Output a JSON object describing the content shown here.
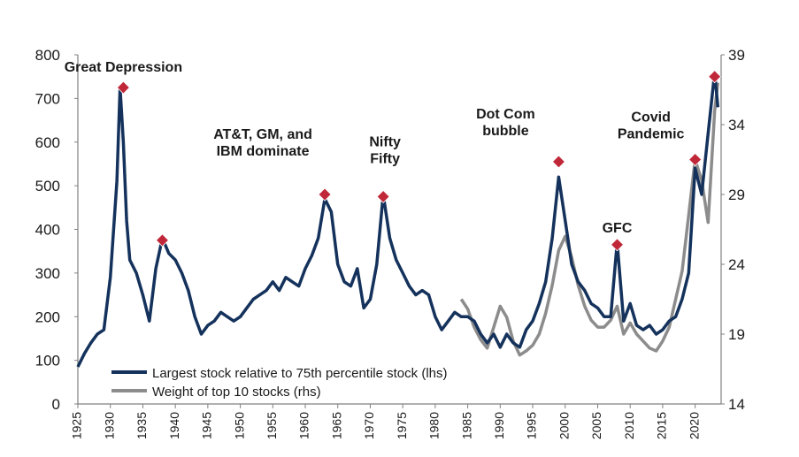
{
  "chart_data": {
    "type": "line",
    "title": "",
    "xlabel": "",
    "ylabel": "",
    "y2label": "",
    "xlim": [
      1925,
      2024
    ],
    "ylim": [
      0,
      800
    ],
    "y2lim": [
      14,
      39
    ],
    "x_ticks": [
      1925,
      1930,
      1935,
      1940,
      1945,
      1950,
      1955,
      1960,
      1965,
      1970,
      1975,
      1980,
      1985,
      1990,
      1995,
      2000,
      2005,
      2010,
      2015,
      2020
    ],
    "y_ticks": [
      0,
      100,
      200,
      300,
      400,
      500,
      600,
      700,
      800
    ],
    "y2_ticks": [
      14,
      19,
      24,
      29,
      34,
      39
    ],
    "grid": false,
    "legend_position": "bottom-left",
    "colors": {
      "lhs": "#14325c",
      "rhs": "#8c8c8c",
      "marker": "#c0283a"
    },
    "series": [
      {
        "name": "Largest stock relative to 75th percentile stock (lhs)",
        "axis": "left",
        "x": [
          1925,
          1926,
          1927,
          1928,
          1929,
          1930,
          1931,
          1931.5,
          1932,
          1932.5,
          1933,
          1934,
          1935,
          1936,
          1937,
          1938,
          1939,
          1940,
          1941,
          1942,
          1943,
          1944,
          1945,
          1946,
          1947,
          1948,
          1949,
          1950,
          1951,
          1952,
          1953,
          1954,
          1955,
          1956,
          1957,
          1958,
          1959,
          1960,
          1961,
          1962,
          1963,
          1964,
          1965,
          1966,
          1967,
          1968,
          1969,
          1970,
          1971,
          1972,
          1973,
          1974,
          1975,
          1976,
          1977,
          1978,
          1979,
          1980,
          1981,
          1982,
          1983,
          1984,
          1985,
          1986,
          1987,
          1988,
          1989,
          1990,
          1991,
          1992,
          1993,
          1994,
          1995,
          1996,
          1997,
          1998,
          1999,
          2000,
          2001,
          2002,
          2003,
          2004,
          2005,
          2006,
          2007,
          2008,
          2009,
          2010,
          2011,
          2012,
          2013,
          2014,
          2015,
          2016,
          2017,
          2018,
          2019,
          2020,
          2021,
          2022,
          2023,
          2023.5
        ],
        "values": [
          85,
          115,
          140,
          160,
          170,
          290,
          510,
          725,
          600,
          420,
          330,
          300,
          250,
          190,
          310,
          380,
          345,
          330,
          300,
          260,
          200,
          160,
          180,
          190,
          210,
          200,
          190,
          200,
          220,
          240,
          250,
          260,
          280,
          260,
          290,
          280,
          270,
          310,
          340,
          380,
          470,
          440,
          320,
          280,
          270,
          310,
          220,
          240,
          320,
          480,
          380,
          330,
          300,
          270,
          250,
          260,
          250,
          200,
          170,
          190,
          210,
          200,
          200,
          190,
          160,
          140,
          160,
          130,
          160,
          140,
          130,
          170,
          190,
          230,
          280,
          380,
          520,
          420,
          320,
          280,
          260,
          230,
          220,
          200,
          200,
          370,
          190,
          230,
          180,
          170,
          180,
          160,
          170,
          190,
          200,
          240,
          300,
          540,
          480,
          620,
          760,
          680
        ],
        "units": "ratio (lhs)"
      },
      {
        "name": "Weight of top 10 stocks (rhs)",
        "axis": "right",
        "x": [
          1984,
          1985,
          1986,
          1987,
          1988,
          1989,
          1990,
          1991,
          1992,
          1993,
          1994,
          1995,
          1996,
          1997,
          1998,
          1999,
          2000,
          2001,
          2002,
          2003,
          2004,
          2005,
          2006,
          2007,
          2008,
          2009,
          2010,
          2011,
          2012,
          2013,
          2014,
          2015,
          2016,
          2017,
          2018,
          2019,
          2020,
          2021,
          2022,
          2023,
          2023.5
        ],
        "values": [
          21.5,
          20.8,
          19.5,
          18.6,
          18.0,
          19.5,
          21.0,
          20.2,
          18.5,
          17.5,
          17.8,
          18.2,
          19.0,
          20.5,
          22.5,
          25.0,
          26.0,
          24.5,
          22.5,
          21.0,
          20.0,
          19.5,
          19.5,
          20.0,
          21.0,
          19.0,
          19.8,
          19.0,
          18.5,
          18.0,
          17.8,
          18.5,
          19.5,
          21.5,
          23.5,
          27.5,
          31.5,
          30.0,
          27.0,
          35.0,
          37.0
        ]
      }
    ],
    "annotations": [
      {
        "label_lines": [
          "Great Depression"
        ],
        "x": 1932,
        "y": 725
      },
      {
        "label_lines": [
          "AT&T, GM, and",
          "IBM dominate"
        ],
        "x": 1963,
        "y": 480
      },
      {
        "label_lines": [
          "Nifty",
          "Fifty"
        ],
        "x": 1972,
        "y": 475
      },
      {
        "label_lines": [
          "Dot Com",
          "bubble"
        ],
        "x": 1999,
        "y": 555
      },
      {
        "label_lines": [
          "GFC"
        ],
        "x": 2008,
        "y": 365
      },
      {
        "label_lines": [
          "Covid",
          "Pandemic"
        ],
        "x": 2020,
        "y": 560
      },
      {
        "label_lines": [],
        "x": 1938,
        "y": 375
      },
      {
        "label_lines": [],
        "x": 2023,
        "y": 750
      }
    ]
  }
}
